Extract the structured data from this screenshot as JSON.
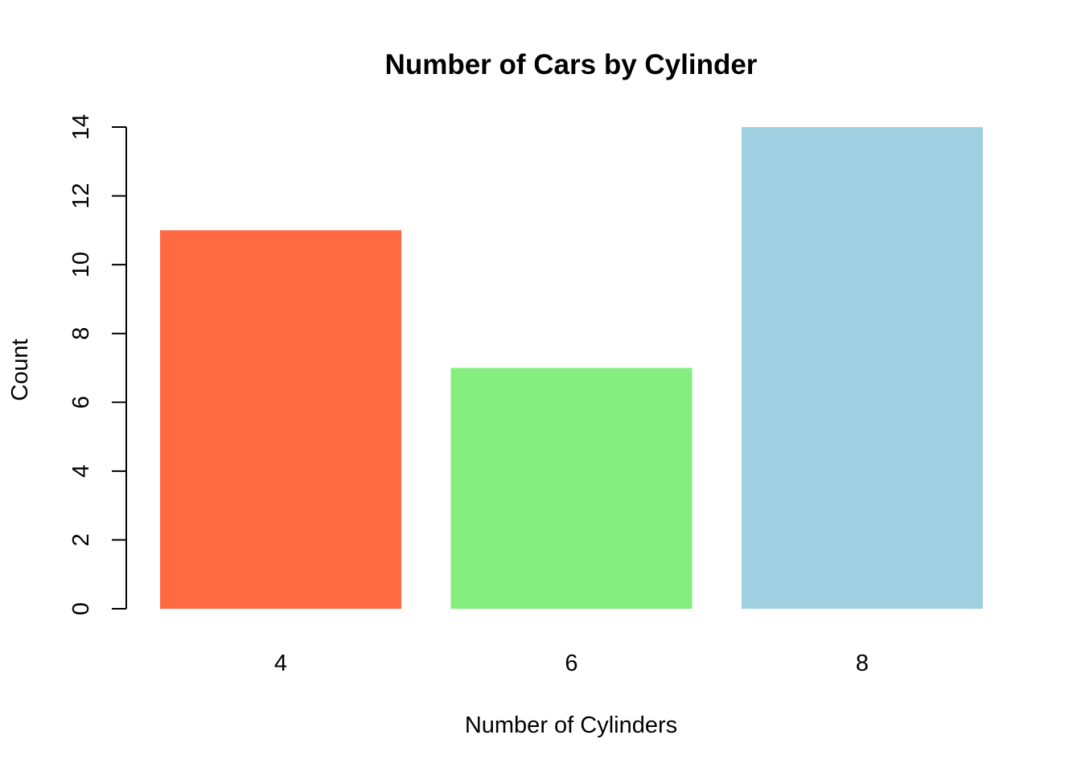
{
  "chart_data": {
    "type": "bar",
    "title": "Number of Cars by Cylinder",
    "xlabel": "Number of Cylinders",
    "ylabel": "Count",
    "categories": [
      "4",
      "6",
      "8"
    ],
    "values": [
      11,
      7,
      14
    ],
    "colors": [
      "#FF6A43",
      "#83EE7E",
      "#9FCFE0"
    ],
    "ylim": [
      0,
      14
    ],
    "yticks": [
      0,
      2,
      4,
      6,
      8,
      10,
      12,
      14
    ],
    "grid": false,
    "legend": "none"
  }
}
